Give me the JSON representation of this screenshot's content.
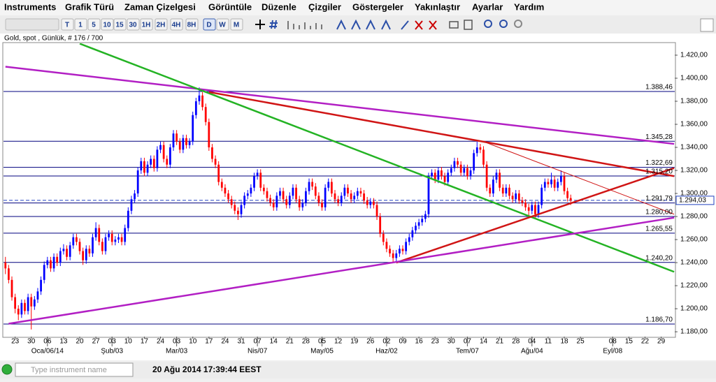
{
  "menu": [
    "Instruments",
    "Grafik Türü",
    "Zaman Çizelgesi",
    "Görüntüle",
    "Düzenle",
    "Çizgiler",
    "Göstergeler",
    "Yakınlaştır",
    "Ayarlar",
    "Yardım"
  ],
  "timeframes": [
    "T",
    "1",
    "5",
    "10",
    "15",
    "30",
    "1H",
    "2H",
    "4H",
    "8H",
    "D",
    "W",
    "M"
  ],
  "selected_timeframe": "D",
  "status": {
    "placeholder": "Type instrument name",
    "datetime": "20 Ağu 2014 17:39:44 EEST"
  },
  "chart_data": {
    "type": "candlestick",
    "title": "Gold, spot , Günlük, # 176 / 700",
    "up_color": "#0000ff",
    "down_color": "#ff0000",
    "xlim": [
      -0.6,
      207.2
    ],
    "ylim": [
      1175.8,
      1430.3
    ],
    "yticks": [
      {
        "value": 1180,
        "label": "1.180,00"
      },
      {
        "value": 1200,
        "label": "1.200,00"
      },
      {
        "value": 1220,
        "label": "1.220,00"
      },
      {
        "value": 1240,
        "label": "1.240,00"
      },
      {
        "value": 1260,
        "label": "1.260,00"
      },
      {
        "value": 1280,
        "label": "1.280,00"
      },
      {
        "value": 1300,
        "label": "1.300,00"
      },
      {
        "value": 1320,
        "label": "1.320,00"
      },
      {
        "value": 1340,
        "label": "1.340,00"
      },
      {
        "value": 1360,
        "label": "1.360,00"
      },
      {
        "value": 1380,
        "label": "1.380,00"
      },
      {
        "value": 1400,
        "label": "1.400,00"
      },
      {
        "value": 1420,
        "label": "1.420,00"
      }
    ],
    "xticks": [
      {
        "value": 3,
        "label": "23"
      },
      {
        "value": 8,
        "label": "30"
      },
      {
        "value": 13,
        "label": "06"
      },
      {
        "value": 18,
        "label": "13"
      },
      {
        "value": 23,
        "label": "20"
      },
      {
        "value": 28,
        "label": "27"
      },
      {
        "value": 33,
        "label": "03"
      },
      {
        "value": 38,
        "label": "10"
      },
      {
        "value": 43,
        "label": "17"
      },
      {
        "value": 48,
        "label": "24"
      },
      {
        "value": 53,
        "label": "03"
      },
      {
        "value": 58,
        "label": "10"
      },
      {
        "value": 63,
        "label": "17"
      },
      {
        "value": 68,
        "label": "24"
      },
      {
        "value": 73,
        "label": "31"
      },
      {
        "value": 78,
        "label": "07"
      },
      {
        "value": 83,
        "label": "14"
      },
      {
        "value": 88,
        "label": "21"
      },
      {
        "value": 93,
        "label": "28"
      },
      {
        "value": 98,
        "label": "05"
      },
      {
        "value": 103,
        "label": "12"
      },
      {
        "value": 108,
        "label": "19"
      },
      {
        "value": 113,
        "label": "26"
      },
      {
        "value": 118,
        "label": "02"
      },
      {
        "value": 123,
        "label": "09"
      },
      {
        "value": 128,
        "label": "16"
      },
      {
        "value": 133,
        "label": "23"
      },
      {
        "value": 138,
        "label": "30"
      },
      {
        "value": 143,
        "label": "07"
      },
      {
        "value": 148,
        "label": "14"
      },
      {
        "value": 153,
        "label": "21"
      },
      {
        "value": 158,
        "label": "28"
      },
      {
        "value": 163,
        "label": "04"
      },
      {
        "value": 168,
        "label": "11"
      },
      {
        "value": 173,
        "label": "18"
      },
      {
        "value": 178,
        "label": "25"
      },
      {
        "value": 188,
        "label": "08"
      },
      {
        "value": 193,
        "label": "15"
      },
      {
        "value": 198,
        "label": "22"
      },
      {
        "value": 203,
        "label": "29"
      }
    ],
    "month_labels": [
      {
        "value": 13,
        "label": "Oca/06/14"
      },
      {
        "value": 33,
        "label": "Şub/03"
      },
      {
        "value": 53,
        "label": "Mar/03"
      },
      {
        "value": 78,
        "label": "Nis/07"
      },
      {
        "value": 98,
        "label": "May/05"
      },
      {
        "value": 118,
        "label": "Haz/02"
      },
      {
        "value": 143,
        "label": "Tem/07"
      },
      {
        "value": 163,
        "label": "Ağu/04"
      },
      {
        "value": 188,
        "label": "Eyl/08"
      }
    ],
    "levels": [
      {
        "value": 1388.46,
        "label": "1.388,46"
      },
      {
        "value": 1345.28,
        "label": "1.345,28"
      },
      {
        "value": 1322.69,
        "label": "1.322,69"
      },
      {
        "value": 1315.2,
        "label": "1.315,20"
      },
      {
        "value": 1291.79,
        "label": "1.291,79"
      },
      {
        "value": 1280,
        "label": "1.280,00"
      },
      {
        "value": 1265.55,
        "label": "1.265,55"
      },
      {
        "value": 1240.2,
        "label": "1.240,20"
      },
      {
        "value": 1186.7,
        "label": "1.186,70"
      }
    ],
    "level_color": "#00007f",
    "current_price": {
      "value": 1294.03,
      "label": "1.294,03"
    },
    "trendlines": [
      {
        "color": "#b21fc4",
        "start": [
          0,
          1410
        ],
        "end": [
          207,
          1343
        ]
      },
      {
        "color": "#24b324",
        "start": [
          23,
          1430
        ],
        "end": [
          207,
          1232
        ]
      },
      {
        "color": "#d01515",
        "start": [
          63,
          1388
        ],
        "end": [
          207,
          1315
        ]
      },
      {
        "color": "#d01515",
        "start": [
          148,
          1345
        ],
        "end": [
          207,
          1282
        ],
        "thin": true
      },
      {
        "color": "#d01515",
        "start": [
          121,
          1240
        ],
        "end": [
          207,
          1322
        ]
      },
      {
        "color": "#b21fc4",
        "start": [
          1,
          1187
        ],
        "end": [
          207,
          1279
        ]
      }
    ],
    "ohlc": [
      [
        1240,
        1245,
        1230,
        1235
      ],
      [
        1235,
        1238,
        1222,
        1225
      ],
      [
        1225,
        1228,
        1207,
        1210
      ],
      [
        1210,
        1213,
        1196,
        1200
      ],
      [
        1200,
        1203,
        1190,
        1195
      ],
      [
        1195,
        1208,
        1192,
        1205
      ],
      [
        1205,
        1208,
        1195,
        1198
      ],
      [
        1198,
        1213,
        1195,
        1210
      ],
      [
        1210,
        1213,
        1182,
        1202
      ],
      [
        1202,
        1211,
        1199,
        1208
      ],
      [
        1208,
        1218,
        1205,
        1215
      ],
      [
        1215,
        1228,
        1212,
        1225
      ],
      [
        1225,
        1241,
        1222,
        1238
      ],
      [
        1238,
        1245,
        1235,
        1242
      ],
      [
        1242,
        1245,
        1232,
        1235
      ],
      [
        1235,
        1248,
        1232,
        1245
      ],
      [
        1245,
        1248,
        1237,
        1240
      ],
      [
        1240,
        1253,
        1237,
        1250
      ],
      [
        1250,
        1256,
        1247,
        1252
      ],
      [
        1252,
        1255,
        1242,
        1245
      ],
      [
        1245,
        1258,
        1242,
        1255
      ],
      [
        1255,
        1265,
        1252,
        1262
      ],
      [
        1262,
        1265,
        1255,
        1258
      ],
      [
        1258,
        1261,
        1247,
        1250
      ],
      [
        1250,
        1253,
        1238,
        1242
      ],
      [
        1242,
        1255,
        1239,
        1252
      ],
      [
        1252,
        1255,
        1245,
        1248
      ],
      [
        1248,
        1265,
        1245,
        1262
      ],
      [
        1262,
        1275,
        1259,
        1270
      ],
      [
        1270,
        1273,
        1255,
        1258
      ],
      [
        1258,
        1261,
        1247,
        1250
      ],
      [
        1250,
        1265,
        1247,
        1262
      ],
      [
        1262,
        1268,
        1259,
        1265
      ],
      [
        1265,
        1268,
        1255,
        1258
      ],
      [
        1258,
        1263,
        1255,
        1260
      ],
      [
        1260,
        1265,
        1257,
        1262
      ],
      [
        1262,
        1265,
        1255,
        1258
      ],
      [
        1258,
        1273,
        1255,
        1270
      ],
      [
        1270,
        1288,
        1267,
        1285
      ],
      [
        1285,
        1298,
        1282,
        1295
      ],
      [
        1295,
        1303,
        1292,
        1300
      ],
      [
        1300,
        1323,
        1297,
        1320
      ],
      [
        1320,
        1331,
        1317,
        1328
      ],
      [
        1328,
        1331,
        1315,
        1318
      ],
      [
        1318,
        1328,
        1315,
        1325
      ],
      [
        1325,
        1333,
        1322,
        1330
      ],
      [
        1330,
        1333,
        1319,
        1322
      ],
      [
        1322,
        1341,
        1319,
        1338
      ],
      [
        1338,
        1345,
        1335,
        1342
      ],
      [
        1342,
        1345,
        1327,
        1330
      ],
      [
        1330,
        1333,
        1322,
        1325
      ],
      [
        1325,
        1343,
        1322,
        1340
      ],
      [
        1340,
        1355,
        1337,
        1352
      ],
      [
        1352,
        1355,
        1342,
        1345
      ],
      [
        1345,
        1348,
        1335,
        1338
      ],
      [
        1338,
        1351,
        1335,
        1348
      ],
      [
        1348,
        1351,
        1339,
        1342
      ],
      [
        1342,
        1348,
        1339,
        1345
      ],
      [
        1345,
        1371,
        1342,
        1368
      ],
      [
        1368,
        1383,
        1365,
        1380
      ],
      [
        1380,
        1392,
        1377,
        1385
      ],
      [
        1385,
        1388,
        1372,
        1375
      ],
      [
        1375,
        1378,
        1359,
        1362
      ],
      [
        1362,
        1365,
        1337,
        1340
      ],
      [
        1340,
        1343,
        1327,
        1330
      ],
      [
        1330,
        1333,
        1322,
        1325
      ],
      [
        1325,
        1328,
        1307,
        1310
      ],
      [
        1310,
        1313,
        1302,
        1305
      ],
      [
        1305,
        1308,
        1297,
        1300
      ],
      [
        1300,
        1303,
        1292,
        1295
      ],
      [
        1295,
        1298,
        1287,
        1290
      ],
      [
        1290,
        1293,
        1282,
        1285
      ],
      [
        1285,
        1288,
        1277,
        1282
      ],
      [
        1282,
        1293,
        1279,
        1290
      ],
      [
        1290,
        1301,
        1287,
        1298
      ],
      [
        1298,
        1303,
        1295,
        1300
      ],
      [
        1300,
        1308,
        1297,
        1305
      ],
      [
        1305,
        1318,
        1302,
        1315
      ],
      [
        1315,
        1321,
        1312,
        1318
      ],
      [
        1318,
        1321,
        1302,
        1305
      ],
      [
        1305,
        1308,
        1299,
        1302
      ],
      [
        1302,
        1305,
        1293,
        1296
      ],
      [
        1296,
        1299,
        1289,
        1292
      ],
      [
        1292,
        1295,
        1285,
        1288
      ],
      [
        1288,
        1301,
        1285,
        1298
      ],
      [
        1298,
        1305,
        1295,
        1302
      ],
      [
        1302,
        1305,
        1292,
        1295
      ],
      [
        1295,
        1298,
        1287,
        1290
      ],
      [
        1290,
        1301,
        1287,
        1298
      ],
      [
        1298,
        1308,
        1295,
        1305
      ],
      [
        1305,
        1308,
        1292,
        1295
      ],
      [
        1295,
        1298,
        1285,
        1288
      ],
      [
        1288,
        1295,
        1285,
        1292
      ],
      [
        1292,
        1305,
        1289,
        1302
      ],
      [
        1302,
        1313,
        1299,
        1310
      ],
      [
        1310,
        1313,
        1303,
        1306
      ],
      [
        1306,
        1309,
        1295,
        1298
      ],
      [
        1298,
        1301,
        1289,
        1292
      ],
      [
        1292,
        1295,
        1285,
        1288
      ],
      [
        1288,
        1308,
        1285,
        1305
      ],
      [
        1305,
        1313,
        1302,
        1310
      ],
      [
        1310,
        1313,
        1297,
        1300
      ],
      [
        1300,
        1303,
        1292,
        1295
      ],
      [
        1295,
        1298,
        1289,
        1292
      ],
      [
        1292,
        1301,
        1289,
        1298
      ],
      [
        1298,
        1308,
        1295,
        1305
      ],
      [
        1305,
        1308,
        1297,
        1300
      ],
      [
        1300,
        1303,
        1292,
        1295
      ],
      [
        1295,
        1301,
        1292,
        1298
      ],
      [
        1298,
        1305,
        1295,
        1302
      ],
      [
        1302,
        1305,
        1297,
        1300
      ],
      [
        1300,
        1303,
        1291,
        1294
      ],
      [
        1294,
        1297,
        1287,
        1290
      ],
      [
        1290,
        1296,
        1287,
        1293
      ],
      [
        1293,
        1296,
        1287,
        1290
      ],
      [
        1290,
        1293,
        1277,
        1280
      ],
      [
        1280,
        1283,
        1262,
        1265
      ],
      [
        1265,
        1268,
        1255,
        1258
      ],
      [
        1258,
        1261,
        1249,
        1252
      ],
      [
        1252,
        1255,
        1245,
        1248
      ],
      [
        1248,
        1251,
        1240,
        1244
      ],
      [
        1244,
        1251,
        1241,
        1248
      ],
      [
        1248,
        1255,
        1245,
        1252
      ],
      [
        1252,
        1255,
        1247,
        1250
      ],
      [
        1250,
        1261,
        1247,
        1258
      ],
      [
        1258,
        1265,
        1255,
        1262
      ],
      [
        1262,
        1271,
        1259,
        1268
      ],
      [
        1268,
        1275,
        1265,
        1272
      ],
      [
        1272,
        1278,
        1269,
        1275
      ],
      [
        1275,
        1281,
        1272,
        1278
      ],
      [
        1278,
        1285,
        1275,
        1282
      ],
      [
        1282,
        1318,
        1279,
        1315
      ],
      [
        1315,
        1321,
        1312,
        1318
      ],
      [
        1318,
        1321,
        1309,
        1312
      ],
      [
        1312,
        1323,
        1309,
        1320
      ],
      [
        1320,
        1323,
        1312,
        1315
      ],
      [
        1315,
        1318,
        1307,
        1310
      ],
      [
        1310,
        1321,
        1307,
        1318
      ],
      [
        1318,
        1325,
        1315,
        1322
      ],
      [
        1322,
        1331,
        1319,
        1328
      ],
      [
        1328,
        1331,
        1322,
        1325
      ],
      [
        1325,
        1328,
        1315,
        1318
      ],
      [
        1318,
        1325,
        1315,
        1322
      ],
      [
        1322,
        1325,
        1312,
        1315
      ],
      [
        1315,
        1323,
        1312,
        1320
      ],
      [
        1320,
        1338,
        1317,
        1335
      ],
      [
        1335,
        1345,
        1332,
        1340
      ],
      [
        1340,
        1343,
        1335,
        1338
      ],
      [
        1338,
        1341,
        1322,
        1325
      ],
      [
        1325,
        1328,
        1302,
        1305
      ],
      [
        1305,
        1308,
        1297,
        1300
      ],
      [
        1300,
        1315,
        1297,
        1312
      ],
      [
        1312,
        1321,
        1309,
        1318
      ],
      [
        1318,
        1321,
        1302,
        1305
      ],
      [
        1305,
        1308,
        1297,
        1300
      ],
      [
        1300,
        1308,
        1297,
        1305
      ],
      [
        1305,
        1308,
        1295,
        1298
      ],
      [
        1298,
        1301,
        1292,
        1295
      ],
      [
        1295,
        1303,
        1292,
        1300
      ],
      [
        1300,
        1303,
        1291,
        1294
      ],
      [
        1294,
        1297,
        1289,
        1292
      ],
      [
        1292,
        1295,
        1285,
        1288
      ],
      [
        1288,
        1291,
        1280,
        1285
      ],
      [
        1285,
        1293,
        1282,
        1290
      ],
      [
        1290,
        1293,
        1279,
        1282
      ],
      [
        1282,
        1293,
        1279,
        1290
      ],
      [
        1290,
        1308,
        1287,
        1305
      ],
      [
        1305,
        1313,
        1302,
        1310
      ],
      [
        1310,
        1313,
        1305,
        1308
      ],
      [
        1308,
        1318,
        1305,
        1312
      ],
      [
        1312,
        1315,
        1302,
        1305
      ],
      [
        1305,
        1313,
        1302,
        1310
      ],
      [
        1310,
        1320,
        1307,
        1315
      ],
      [
        1315,
        1318,
        1299,
        1302
      ],
      [
        1302,
        1305,
        1293,
        1296
      ],
      [
        1296,
        1299,
        1290,
        1294.03
      ]
    ]
  }
}
